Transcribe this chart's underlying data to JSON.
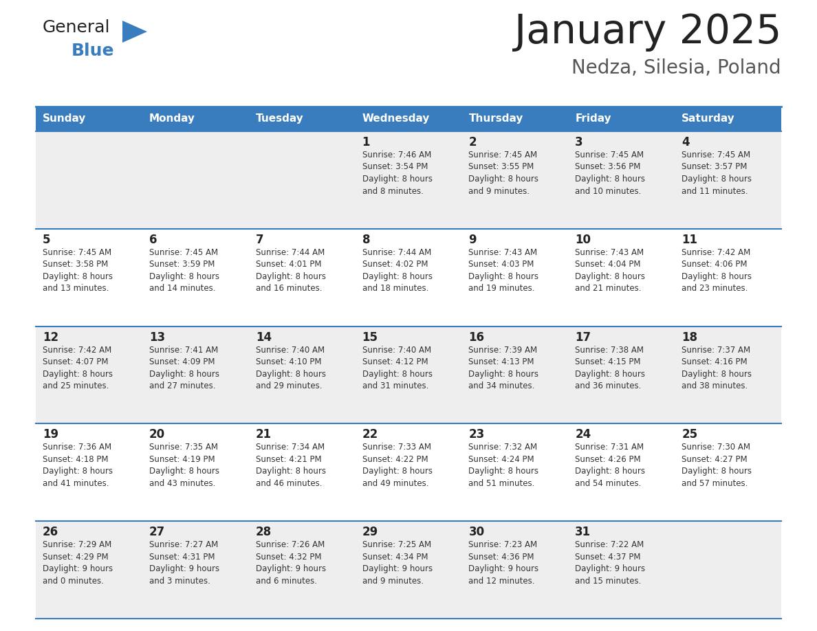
{
  "title": "January 2025",
  "subtitle": "Nedza, Silesia, Poland",
  "header_color": "#3a7dbf",
  "header_text_color": "#ffffff",
  "cell_bg_even": "#eeeeee",
  "cell_bg_odd": "#ffffff",
  "separator_color": "#3a7dbf",
  "day_number_color": "#222222",
  "info_text_color": "#333333",
  "title_color": "#222222",
  "subtitle_color": "#555555",
  "logo_general_color": "#222222",
  "logo_blue_color": "#3a7dbf",
  "logo_triangle_color": "#3a7dbf",
  "days_of_week": [
    "Sunday",
    "Monday",
    "Tuesday",
    "Wednesday",
    "Thursday",
    "Friday",
    "Saturday"
  ],
  "calendar": [
    [
      {
        "day": "",
        "info": ""
      },
      {
        "day": "",
        "info": ""
      },
      {
        "day": "",
        "info": ""
      },
      {
        "day": "1",
        "info": "Sunrise: 7:46 AM\nSunset: 3:54 PM\nDaylight: 8 hours\nand 8 minutes."
      },
      {
        "day": "2",
        "info": "Sunrise: 7:45 AM\nSunset: 3:55 PM\nDaylight: 8 hours\nand 9 minutes."
      },
      {
        "day": "3",
        "info": "Sunrise: 7:45 AM\nSunset: 3:56 PM\nDaylight: 8 hours\nand 10 minutes."
      },
      {
        "day": "4",
        "info": "Sunrise: 7:45 AM\nSunset: 3:57 PM\nDaylight: 8 hours\nand 11 minutes."
      }
    ],
    [
      {
        "day": "5",
        "info": "Sunrise: 7:45 AM\nSunset: 3:58 PM\nDaylight: 8 hours\nand 13 minutes."
      },
      {
        "day": "6",
        "info": "Sunrise: 7:45 AM\nSunset: 3:59 PM\nDaylight: 8 hours\nand 14 minutes."
      },
      {
        "day": "7",
        "info": "Sunrise: 7:44 AM\nSunset: 4:01 PM\nDaylight: 8 hours\nand 16 minutes."
      },
      {
        "day": "8",
        "info": "Sunrise: 7:44 AM\nSunset: 4:02 PM\nDaylight: 8 hours\nand 18 minutes."
      },
      {
        "day": "9",
        "info": "Sunrise: 7:43 AM\nSunset: 4:03 PM\nDaylight: 8 hours\nand 19 minutes."
      },
      {
        "day": "10",
        "info": "Sunrise: 7:43 AM\nSunset: 4:04 PM\nDaylight: 8 hours\nand 21 minutes."
      },
      {
        "day": "11",
        "info": "Sunrise: 7:42 AM\nSunset: 4:06 PM\nDaylight: 8 hours\nand 23 minutes."
      }
    ],
    [
      {
        "day": "12",
        "info": "Sunrise: 7:42 AM\nSunset: 4:07 PM\nDaylight: 8 hours\nand 25 minutes."
      },
      {
        "day": "13",
        "info": "Sunrise: 7:41 AM\nSunset: 4:09 PM\nDaylight: 8 hours\nand 27 minutes."
      },
      {
        "day": "14",
        "info": "Sunrise: 7:40 AM\nSunset: 4:10 PM\nDaylight: 8 hours\nand 29 minutes."
      },
      {
        "day": "15",
        "info": "Sunrise: 7:40 AM\nSunset: 4:12 PM\nDaylight: 8 hours\nand 31 minutes."
      },
      {
        "day": "16",
        "info": "Sunrise: 7:39 AM\nSunset: 4:13 PM\nDaylight: 8 hours\nand 34 minutes."
      },
      {
        "day": "17",
        "info": "Sunrise: 7:38 AM\nSunset: 4:15 PM\nDaylight: 8 hours\nand 36 minutes."
      },
      {
        "day": "18",
        "info": "Sunrise: 7:37 AM\nSunset: 4:16 PM\nDaylight: 8 hours\nand 38 minutes."
      }
    ],
    [
      {
        "day": "19",
        "info": "Sunrise: 7:36 AM\nSunset: 4:18 PM\nDaylight: 8 hours\nand 41 minutes."
      },
      {
        "day": "20",
        "info": "Sunrise: 7:35 AM\nSunset: 4:19 PM\nDaylight: 8 hours\nand 43 minutes."
      },
      {
        "day": "21",
        "info": "Sunrise: 7:34 AM\nSunset: 4:21 PM\nDaylight: 8 hours\nand 46 minutes."
      },
      {
        "day": "22",
        "info": "Sunrise: 7:33 AM\nSunset: 4:22 PM\nDaylight: 8 hours\nand 49 minutes."
      },
      {
        "day": "23",
        "info": "Sunrise: 7:32 AM\nSunset: 4:24 PM\nDaylight: 8 hours\nand 51 minutes."
      },
      {
        "day": "24",
        "info": "Sunrise: 7:31 AM\nSunset: 4:26 PM\nDaylight: 8 hours\nand 54 minutes."
      },
      {
        "day": "25",
        "info": "Sunrise: 7:30 AM\nSunset: 4:27 PM\nDaylight: 8 hours\nand 57 minutes."
      }
    ],
    [
      {
        "day": "26",
        "info": "Sunrise: 7:29 AM\nSunset: 4:29 PM\nDaylight: 9 hours\nand 0 minutes."
      },
      {
        "day": "27",
        "info": "Sunrise: 7:27 AM\nSunset: 4:31 PM\nDaylight: 9 hours\nand 3 minutes."
      },
      {
        "day": "28",
        "info": "Sunrise: 7:26 AM\nSunset: 4:32 PM\nDaylight: 9 hours\nand 6 minutes."
      },
      {
        "day": "29",
        "info": "Sunrise: 7:25 AM\nSunset: 4:34 PM\nDaylight: 9 hours\nand 9 minutes."
      },
      {
        "day": "30",
        "info": "Sunrise: 7:23 AM\nSunset: 4:36 PM\nDaylight: 9 hours\nand 12 minutes."
      },
      {
        "day": "31",
        "info": "Sunrise: 7:22 AM\nSunset: 4:37 PM\nDaylight: 9 hours\nand 15 minutes."
      },
      {
        "day": "",
        "info": ""
      }
    ]
  ]
}
